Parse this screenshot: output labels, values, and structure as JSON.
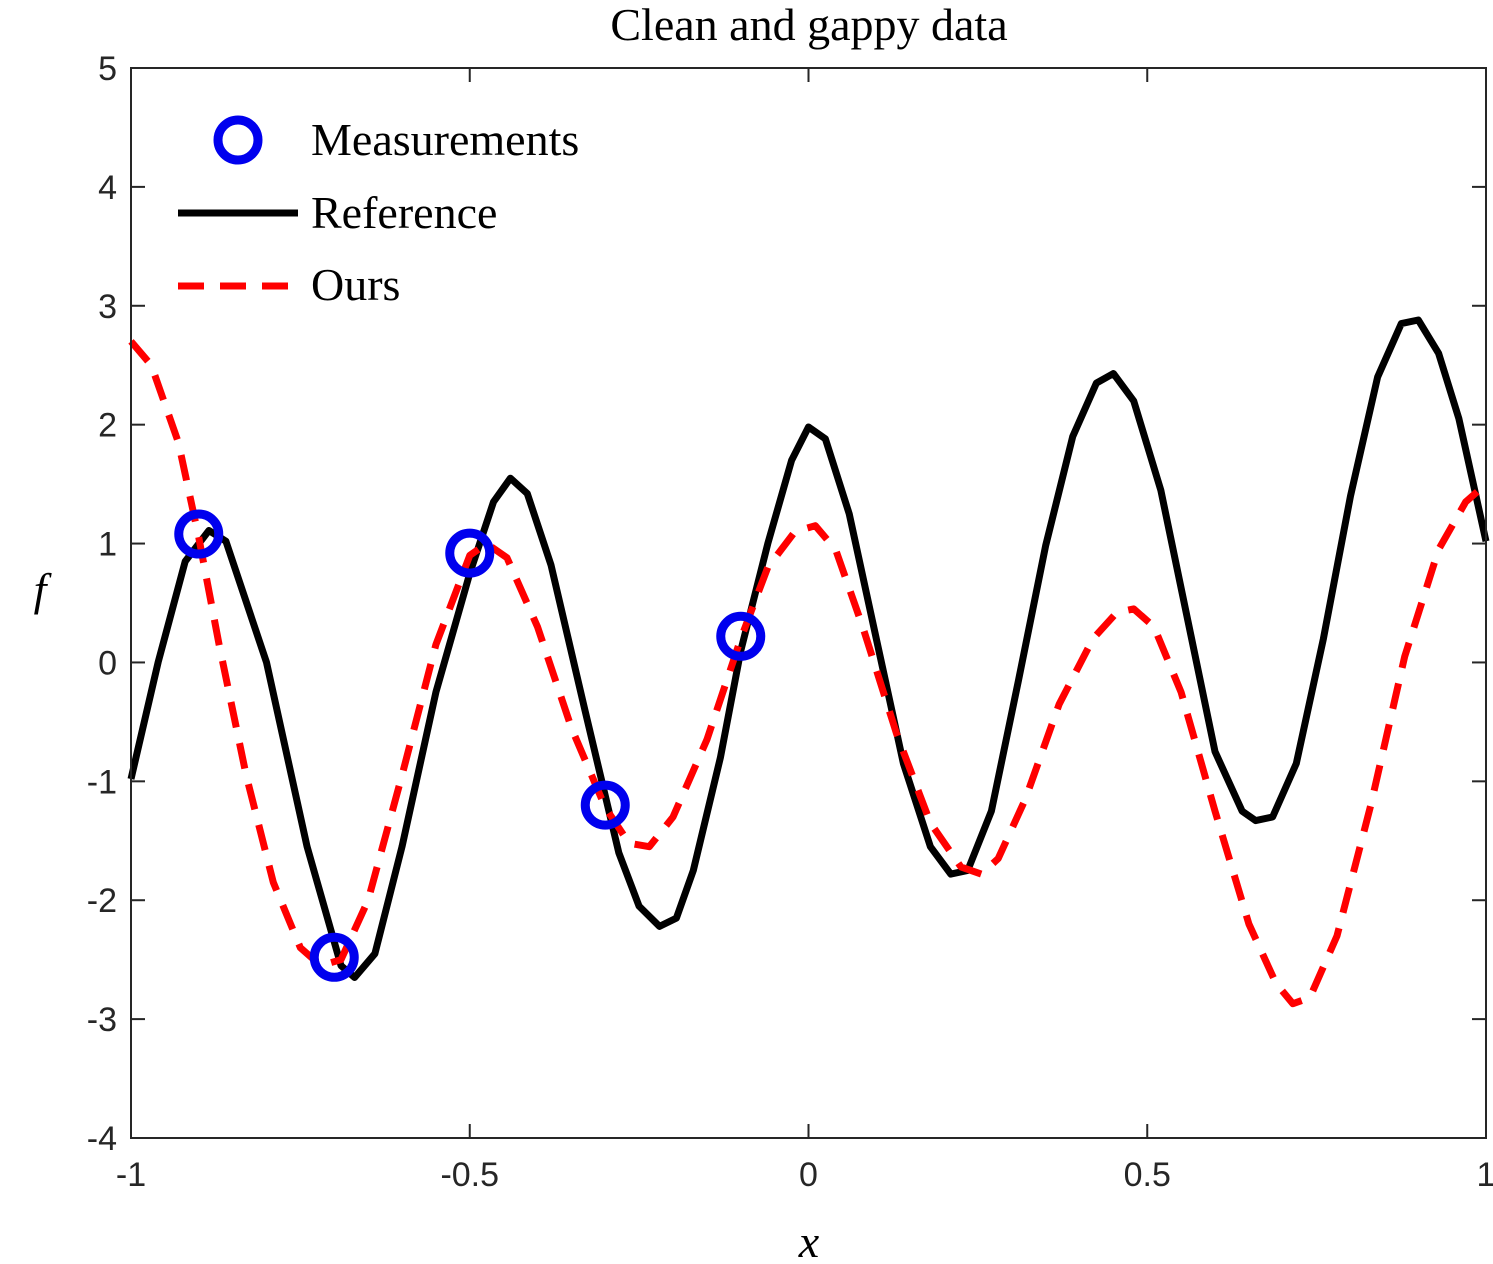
{
  "chart_data": {
    "type": "line",
    "title": "Clean and gappy data",
    "xlabel": "x",
    "ylabel": "f",
    "xlim": [
      -1,
      1
    ],
    "ylim": [
      -4,
      5
    ],
    "xticks": [
      -1,
      -0.5,
      0,
      0.5,
      1
    ],
    "xtick_labels": [
      "-1",
      "-0.5",
      "0",
      "0.5",
      "1"
    ],
    "yticks": [
      -4,
      -3,
      -2,
      -1,
      0,
      1,
      2,
      3,
      4,
      5
    ],
    "ytick_labels": [
      "-4",
      "-3",
      "-2",
      "-1",
      "0",
      "1",
      "2",
      "3",
      "4",
      "5"
    ],
    "grid": false,
    "legend_position": "top-left",
    "colors": {
      "measurements": "#0000ee",
      "reference": "#000000",
      "ours": "#ff0000"
    },
    "series": [
      {
        "name": "Measurements",
        "style": "marker-circle",
        "points": [
          {
            "x": -0.9,
            "y": 1.08
          },
          {
            "x": -0.7,
            "y": -2.48
          },
          {
            "x": -0.5,
            "y": 0.92
          },
          {
            "x": -0.3,
            "y": -1.2
          },
          {
            "x": -0.1,
            "y": 0.22
          }
        ]
      },
      {
        "name": "Reference",
        "style": "solid",
        "points": [
          {
            "x": -1.0,
            "y": -0.98
          },
          {
            "x": -0.96,
            "y": 0.0
          },
          {
            "x": -0.92,
            "y": 0.85
          },
          {
            "x": -0.885,
            "y": 1.11
          },
          {
            "x": -0.86,
            "y": 1.02
          },
          {
            "x": -0.8,
            "y": 0.0
          },
          {
            "x": -0.74,
            "y": -1.55
          },
          {
            "x": -0.69,
            "y": -2.55
          },
          {
            "x": -0.67,
            "y": -2.65
          },
          {
            "x": -0.64,
            "y": -2.45
          },
          {
            "x": -0.6,
            "y": -1.55
          },
          {
            "x": -0.55,
            "y": -0.25
          },
          {
            "x": -0.5,
            "y": 0.75
          },
          {
            "x": -0.465,
            "y": 1.35
          },
          {
            "x": -0.44,
            "y": 1.55
          },
          {
            "x": -0.415,
            "y": 1.42
          },
          {
            "x": -0.38,
            "y": 0.82
          },
          {
            "x": -0.33,
            "y": -0.4
          },
          {
            "x": -0.28,
            "y": -1.6
          },
          {
            "x": -0.25,
            "y": -2.05
          },
          {
            "x": -0.22,
            "y": -2.22
          },
          {
            "x": -0.195,
            "y": -2.15
          },
          {
            "x": -0.17,
            "y": -1.75
          },
          {
            "x": -0.13,
            "y": -0.8
          },
          {
            "x": -0.1,
            "y": 0.1
          },
          {
            "x": -0.06,
            "y": 1.0
          },
          {
            "x": -0.025,
            "y": 1.7
          },
          {
            "x": 0.0,
            "y": 1.98
          },
          {
            "x": 0.025,
            "y": 1.88
          },
          {
            "x": 0.06,
            "y": 1.25
          },
          {
            "x": 0.1,
            "y": 0.2
          },
          {
            "x": 0.14,
            "y": -0.85
          },
          {
            "x": 0.18,
            "y": -1.55
          },
          {
            "x": 0.21,
            "y": -1.78
          },
          {
            "x": 0.235,
            "y": -1.75
          },
          {
            "x": 0.27,
            "y": -1.25
          },
          {
            "x": 0.31,
            "y": -0.15
          },
          {
            "x": 0.35,
            "y": 0.98
          },
          {
            "x": 0.39,
            "y": 1.9
          },
          {
            "x": 0.425,
            "y": 2.35
          },
          {
            "x": 0.45,
            "y": 2.43
          },
          {
            "x": 0.48,
            "y": 2.2
          },
          {
            "x": 0.52,
            "y": 1.45
          },
          {
            "x": 0.56,
            "y": 0.35
          },
          {
            "x": 0.6,
            "y": -0.75
          },
          {
            "x": 0.64,
            "y": -1.25
          },
          {
            "x": 0.66,
            "y": -1.33
          },
          {
            "x": 0.685,
            "y": -1.3
          },
          {
            "x": 0.72,
            "y": -0.85
          },
          {
            "x": 0.76,
            "y": 0.2
          },
          {
            "x": 0.8,
            "y": 1.4
          },
          {
            "x": 0.84,
            "y": 2.4
          },
          {
            "x": 0.875,
            "y": 2.85
          },
          {
            "x": 0.9,
            "y": 2.88
          },
          {
            "x": 0.93,
            "y": 2.6
          },
          {
            "x": 0.96,
            "y": 2.05
          },
          {
            "x": 1.0,
            "y": 1.02
          }
        ]
      },
      {
        "name": "Ours",
        "style": "dashed",
        "points": [
          {
            "x": -1.0,
            "y": 2.7
          },
          {
            "x": -0.97,
            "y": 2.5
          },
          {
            "x": -0.93,
            "y": 1.85
          },
          {
            "x": -0.9,
            "y": 1.05
          },
          {
            "x": -0.87,
            "y": 0.15
          },
          {
            "x": -0.83,
            "y": -0.95
          },
          {
            "x": -0.79,
            "y": -1.85
          },
          {
            "x": -0.75,
            "y": -2.4
          },
          {
            "x": -0.72,
            "y": -2.55
          },
          {
            "x": -0.69,
            "y": -2.5
          },
          {
            "x": -0.65,
            "y": -2.0
          },
          {
            "x": -0.6,
            "y": -0.95
          },
          {
            "x": -0.55,
            "y": 0.15
          },
          {
            "x": -0.5,
            "y": 0.9
          },
          {
            "x": -0.475,
            "y": 1.0
          },
          {
            "x": -0.445,
            "y": 0.88
          },
          {
            "x": -0.4,
            "y": 0.3
          },
          {
            "x": -0.35,
            "y": -0.55
          },
          {
            "x": -0.3,
            "y": -1.22
          },
          {
            "x": -0.265,
            "y": -1.52
          },
          {
            "x": -0.235,
            "y": -1.55
          },
          {
            "x": -0.2,
            "y": -1.3
          },
          {
            "x": -0.15,
            "y": -0.65
          },
          {
            "x": -0.1,
            "y": 0.2
          },
          {
            "x": -0.06,
            "y": 0.8
          },
          {
            "x": -0.02,
            "y": 1.1
          },
          {
            "x": 0.01,
            "y": 1.15
          },
          {
            "x": 0.04,
            "y": 0.95
          },
          {
            "x": 0.08,
            "y": 0.3
          },
          {
            "x": 0.13,
            "y": -0.6
          },
          {
            "x": 0.18,
            "y": -1.35
          },
          {
            "x": 0.225,
            "y": -1.72
          },
          {
            "x": 0.255,
            "y": -1.78
          },
          {
            "x": 0.28,
            "y": -1.65
          },
          {
            "x": 0.32,
            "y": -1.15
          },
          {
            "x": 0.37,
            "y": -0.35
          },
          {
            "x": 0.42,
            "y": 0.2
          },
          {
            "x": 0.455,
            "y": 0.42
          },
          {
            "x": 0.48,
            "y": 0.45
          },
          {
            "x": 0.51,
            "y": 0.3
          },
          {
            "x": 0.55,
            "y": -0.25
          },
          {
            "x": 0.6,
            "y": -1.25
          },
          {
            "x": 0.65,
            "y": -2.2
          },
          {
            "x": 0.69,
            "y": -2.7
          },
          {
            "x": 0.715,
            "y": -2.87
          },
          {
            "x": 0.74,
            "y": -2.82
          },
          {
            "x": 0.78,
            "y": -2.3
          },
          {
            "x": 0.83,
            "y": -1.2
          },
          {
            "x": 0.88,
            "y": 0.05
          },
          {
            "x": 0.93,
            "y": 0.95
          },
          {
            "x": 0.97,
            "y": 1.35
          },
          {
            "x": 1.0,
            "y": 1.5
          }
        ]
      }
    ]
  }
}
